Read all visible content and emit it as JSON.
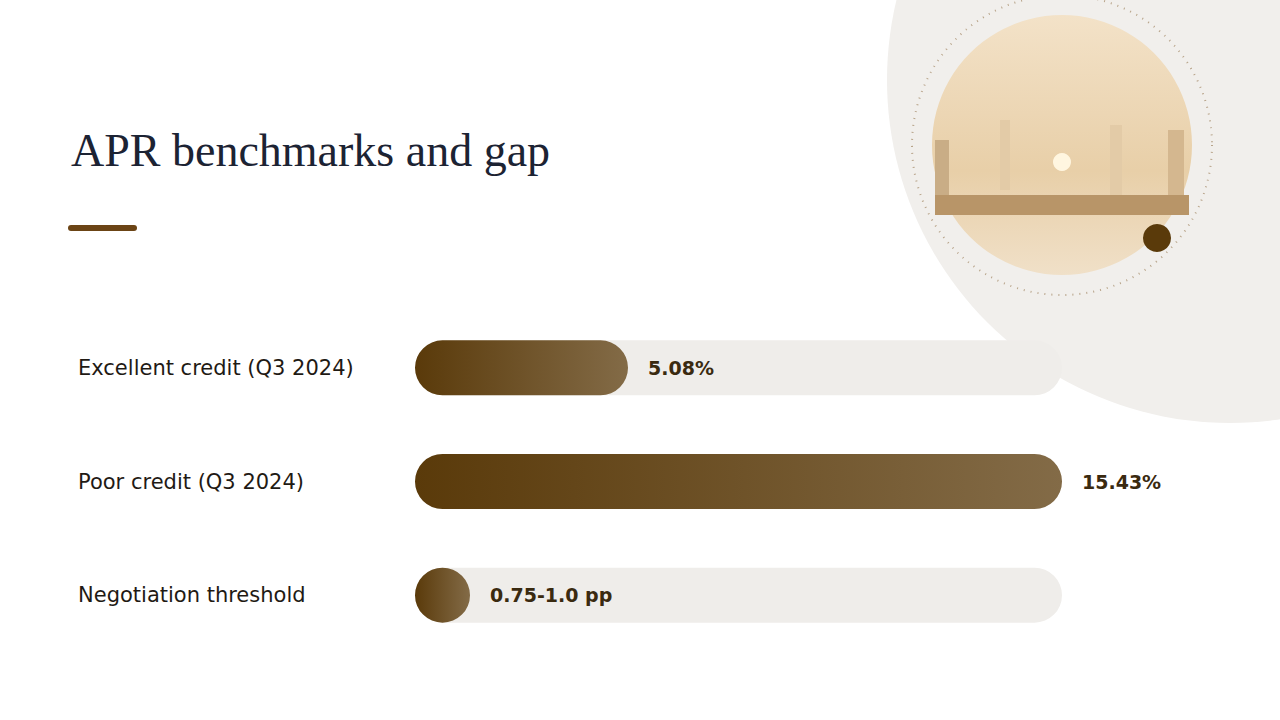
{
  "chart_data": {
    "type": "bar",
    "title": "APR benchmarks and gap",
    "orientation": "horizontal",
    "categories": [
      "Excellent credit (Q3 2024)",
      "Poor credit (Q3 2024)",
      "Negotiation threshold"
    ],
    "values": [
      5.08,
      15.43,
      1.0
    ],
    "value_labels": [
      "5.08%",
      "15.43%",
      "0.75-1.0 pp"
    ],
    "xlim": [
      0,
      15.43
    ],
    "color": "#5a3a0a",
    "data_labels": true,
    "tick_labels": "y",
    "grid": false
  }
}
